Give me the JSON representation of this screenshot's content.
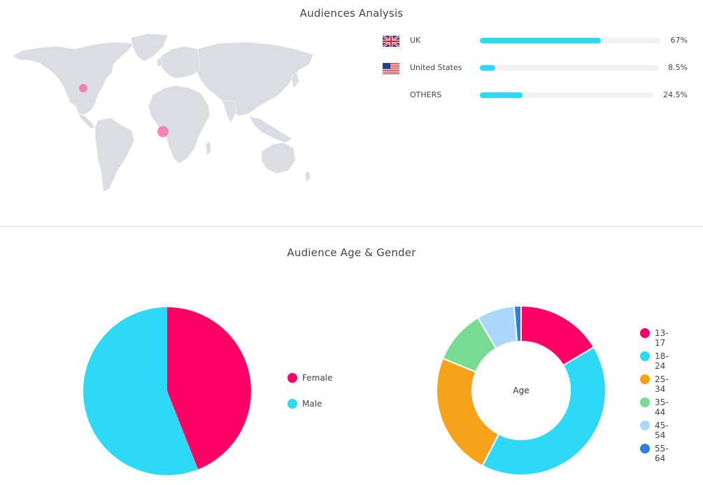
{
  "audiences": {
    "title": "Audiences Analysis",
    "countries": [
      {
        "name": "UK",
        "flag": "uk-flag-icon",
        "percent": 67,
        "label": "67%"
      },
      {
        "name": "United States",
        "flag": "us-flag-icon",
        "percent": 8.5,
        "label": "8.5%"
      },
      {
        "name": "OTHERS",
        "flag": "",
        "percent": 24.5,
        "label": "24.5%"
      }
    ],
    "bar_color": "#2dd9f5",
    "map_color": "#dcdde3",
    "marker_color": "#f080b0"
  },
  "age_gender": {
    "title": "Audience Age & Gender"
  },
  "chart_data": [
    {
      "type": "pie",
      "categories": [
        "Female",
        "Male"
      ],
      "values": [
        44,
        56
      ],
      "colors": [
        "#ff0066",
        "#2dd9f5"
      ],
      "legend_position": "right"
    },
    {
      "type": "pie",
      "donut": true,
      "center_label": "Age",
      "categories": [
        "13-17",
        "18-24",
        "25-34",
        "35-44",
        "45-54",
        "55-64"
      ],
      "values": [
        16,
        40,
        23,
        10,
        7,
        1.3
      ],
      "colors": [
        "#ff0066",
        "#2dd9f5",
        "#f7a21b",
        "#77dc91",
        "#a9d8fb",
        "#2f80d8"
      ],
      "legend_position": "right"
    }
  ]
}
